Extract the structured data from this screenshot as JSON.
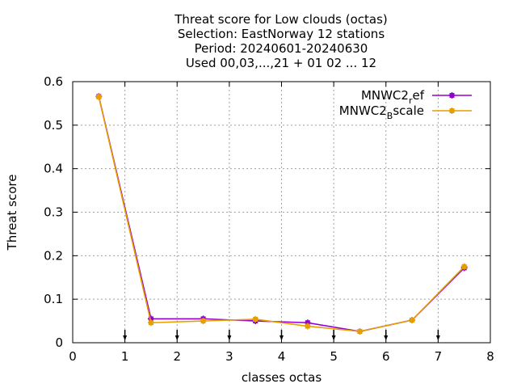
{
  "chart_data": {
    "type": "line",
    "title_lines": [
      "Threat score  for Low clouds (octas)",
      "Selection: EastNorway     12 stations",
      "Period: 20240601-20240630",
      "Used 00,03,...,21 + 01 02 ... 12"
    ],
    "xlabel": "classes octas",
    "ylabel": "Threat score",
    "xlim": [
      0,
      8
    ],
    "ylim": [
      0,
      0.6
    ],
    "xticks": [
      0,
      1,
      2,
      3,
      4,
      5,
      6,
      7,
      8
    ],
    "xtick_labels": [
      "0",
      "1",
      "2",
      "3",
      "4",
      "5",
      "6",
      "7",
      "8"
    ],
    "yticks": [
      0,
      0.1,
      0.2,
      0.3,
      0.4,
      0.5,
      0.6
    ],
    "ytick_labels": [
      "0",
      "0.1",
      "0.2",
      "0.3",
      "0.4",
      "0.5",
      "0.6"
    ],
    "grid": true,
    "legend_position": "top-right",
    "class_markers": [
      1,
      2,
      3,
      4,
      5,
      6,
      7
    ],
    "x": [
      0.5,
      1.5,
      2.5,
      3.5,
      4.5,
      5.5,
      6.5,
      7.5
    ],
    "series": [
      {
        "name_base": "MNWC2",
        "name_sub": "r",
        "name_rest": "ef",
        "color": "#9400d3",
        "values": [
          0.566,
          0.055,
          0.055,
          0.05,
          0.046,
          0.026,
          0.052,
          0.172
        ]
      },
      {
        "name_base": "MNWC2",
        "name_sub": "B",
        "name_rest": "scale",
        "color": "#e69f00",
        "values": [
          0.565,
          0.046,
          0.05,
          0.054,
          0.038,
          0.026,
          0.052,
          0.175
        ]
      }
    ]
  }
}
